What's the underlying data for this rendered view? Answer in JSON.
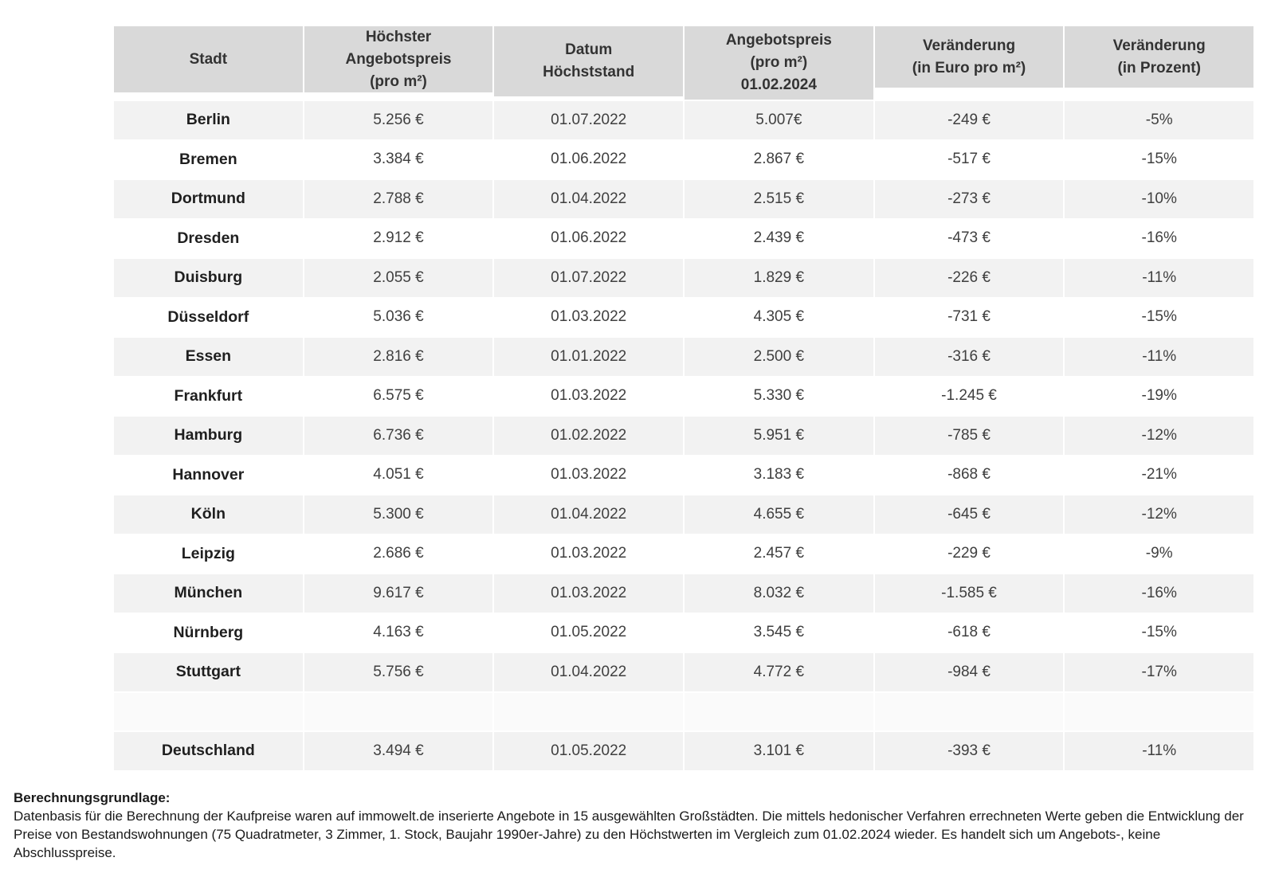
{
  "chart_data": {
    "type": "table",
    "title": "",
    "columns": [
      "Stadt",
      "Höchster\nAngebotspreis\n(pro m²)",
      "Datum\nHöchststand",
      "Angebotspreis\n(pro m²)\n01.02.2024",
      "Veränderung\n(in Euro pro m²)",
      "Veränderung\n(in Prozent)"
    ],
    "rows": [
      [
        "Berlin",
        "5.256 €",
        "01.07.2022",
        "5.007€",
        "-249 €",
        "-5%"
      ],
      [
        "Bremen",
        "3.384 €",
        "01.06.2022",
        "2.867 €",
        "-517 €",
        "-15%"
      ],
      [
        "Dortmund",
        "2.788 €",
        "01.04.2022",
        "2.515 €",
        "-273 €",
        "-10%"
      ],
      [
        "Dresden",
        "2.912 €",
        "01.06.2022",
        "2.439 €",
        "-473 €",
        "-16%"
      ],
      [
        "Duisburg",
        "2.055 €",
        "01.07.2022",
        "1.829 €",
        "-226 €",
        "-11%"
      ],
      [
        "Düsseldorf",
        "5.036 €",
        "01.03.2022",
        "4.305 €",
        "-731 €",
        "-15%"
      ],
      [
        "Essen",
        "2.816 €",
        "01.01.2022",
        "2.500 €",
        "-316 €",
        "-11%"
      ],
      [
        "Frankfurt",
        "6.575 €",
        "01.03.2022",
        "5.330 €",
        "-1.245 €",
        "-19%"
      ],
      [
        "Hamburg",
        "6.736 €",
        "01.02.2022",
        "5.951 €",
        "-785 €",
        "-12%"
      ],
      [
        "Hannover",
        "4.051 €",
        "01.03.2022",
        "3.183 €",
        "-868 €",
        "-21%"
      ],
      [
        "Köln",
        "5.300 €",
        "01.04.2022",
        "4.655 €",
        "-645 €",
        "-12%"
      ],
      [
        "Leipzig",
        "2.686 €",
        "01.03.2022",
        "2.457 €",
        "-229 €",
        "-9%"
      ],
      [
        "München",
        "9.617 €",
        "01.03.2022",
        "8.032 €",
        "-1.585 €",
        "-16%"
      ],
      [
        "Nürnberg",
        "4.163 €",
        "01.05.2022",
        "3.545 €",
        "-618 €",
        "-15%"
      ],
      [
        "Stuttgart",
        "5.756 €",
        "01.04.2022",
        "4.772 €",
        "-984 €",
        "-17%"
      ],
      [
        "",
        "",
        "",
        "",
        "",
        ""
      ],
      [
        "Deutschland",
        "3.494 €",
        "01.05.2022",
        "3.101 €",
        "-393 €",
        "-11%"
      ]
    ],
    "legend_position": "none",
    "grid": false
  },
  "footnote": {
    "heading": "Berechnungsgrundlage:",
    "body": "Datenbasis für die Berechnung der Kaufpreise waren auf immowelt.de inserierte Angebote in 15 ausgewählten Großstädten. Die mittels hedonischer Verfahren errechneten Werte geben die Entwicklung der Preise von Bestandswohnungen (75 Quadratmeter, 3 Zimmer, 1. Stock, Baujahr 1990er-Jahre) zu den Höchstwerten im Vergleich zum 01.02.2024 wieder. Es handelt sich um Angebots-, keine Abschlusspreise."
  },
  "colors": {
    "header_bg": "#d9d9d9",
    "stripe_bg": "#f2f2f2",
    "row_bg": "#ffffff",
    "text": "#3f3f3f"
  }
}
